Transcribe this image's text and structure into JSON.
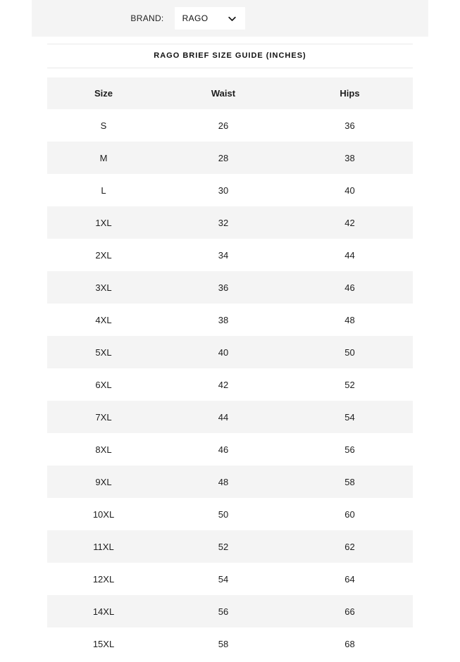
{
  "topbar": {
    "brand_label": "BRAND:",
    "brand_selected": "RAGO"
  },
  "title": "RAGO BRIEF SIZE GUIDE (INCHES)",
  "table": {
    "columns": [
      "Size",
      "Waist",
      "Hips"
    ],
    "rows": [
      [
        "S",
        "26",
        "36"
      ],
      [
        "M",
        "28",
        "38"
      ],
      [
        "L",
        "30",
        "40"
      ],
      [
        "1XL",
        "32",
        "42"
      ],
      [
        "2XL",
        "34",
        "44"
      ],
      [
        "3XL",
        "36",
        "46"
      ],
      [
        "4XL",
        "38",
        "48"
      ],
      [
        "5XL",
        "40",
        "50"
      ],
      [
        "6XL",
        "42",
        "52"
      ],
      [
        "7XL",
        "44",
        "54"
      ],
      [
        "8XL",
        "46",
        "56"
      ],
      [
        "9XL",
        "48",
        "58"
      ],
      [
        "10XL",
        "50",
        "60"
      ],
      [
        "11XL",
        "52",
        "62"
      ],
      [
        "12XL",
        "54",
        "64"
      ],
      [
        "14XL",
        "56",
        "66"
      ],
      [
        "15XL",
        "58",
        "68"
      ]
    ]
  },
  "icons": {
    "brand_dropdown": "chevron-down-icon"
  },
  "colors": {
    "bar_bg": "#f4f4f4",
    "row_alt_bg": "#f4f4f4",
    "divider": "#e9e9e9",
    "text": "#1d1d1d",
    "select_bg": "#ffffff"
  }
}
